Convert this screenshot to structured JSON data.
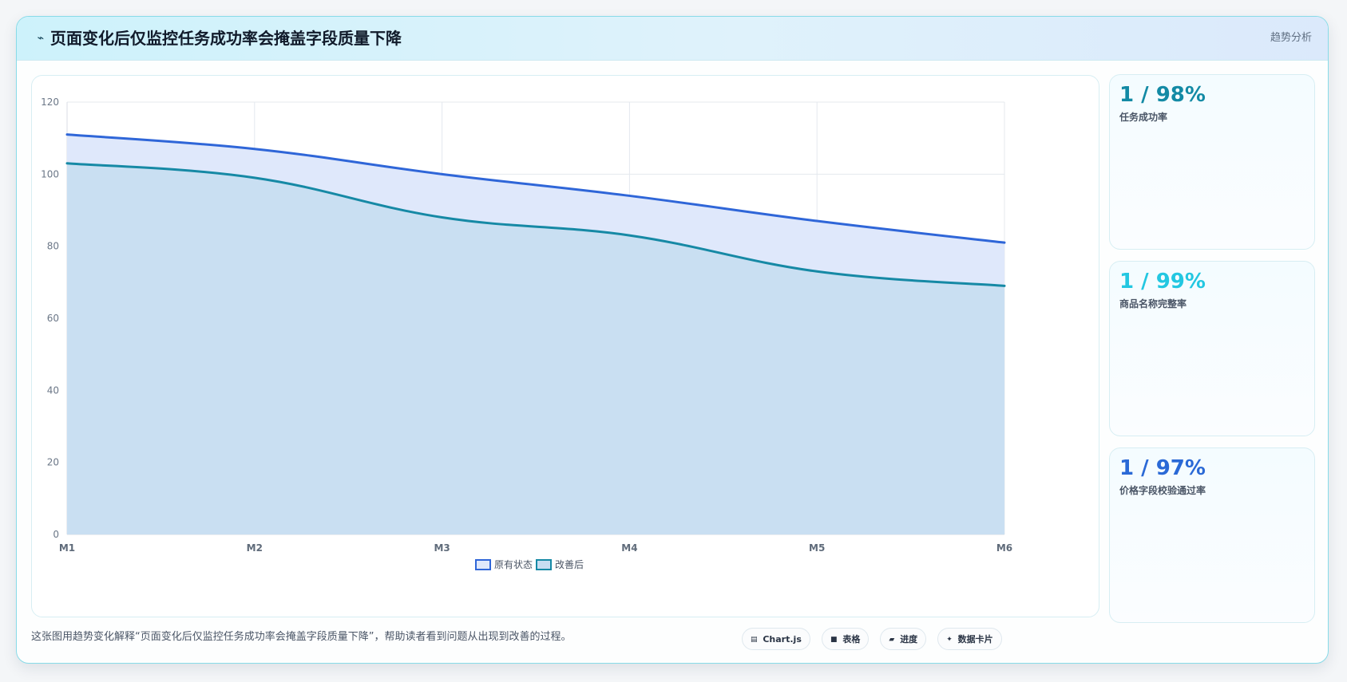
{
  "header": {
    "icon": "wave-icon",
    "title": "页面变化后仅监控任务成功率会掩盖字段质量下降",
    "tag": "趋势分析"
  },
  "chart_data": {
    "type": "area",
    "categories": [
      "M1",
      "M2",
      "M3",
      "M4",
      "M5",
      "M6"
    ],
    "series": [
      {
        "name": "原有状态",
        "values": [
          111,
          107,
          100,
          94,
          87,
          81
        ],
        "color": "#2f66d8",
        "fill": "#dfe8fb"
      },
      {
        "name": "改善后",
        "values": [
          103,
          99,
          88,
          83,
          73,
          69
        ],
        "color": "#1689a5",
        "fill": "#c7ddf1"
      }
    ],
    "ylim": [
      0,
      120
    ],
    "yticks": [
      0,
      20,
      40,
      60,
      80,
      100,
      120
    ],
    "xlabel": "",
    "ylabel": "",
    "grid": true,
    "legend": "bottom-center"
  },
  "kpis": [
    {
      "value": "1 / 98%",
      "label": "任务成功率",
      "color": "#138aa5"
    },
    {
      "value": "1 / 99%",
      "label": "商品名称完整率",
      "color": "#23c7e1"
    },
    {
      "value": "1 / 97%",
      "label": "价格字段校验通过率",
      "color": "#2a69d6"
    }
  ],
  "footer": {
    "note": "这张图用趋势变化解释“页面变化后仅监控任务成功率会掩盖字段质量下降”，帮助读者看到问题从出现到改善的过程。",
    "tags": [
      {
        "icon": "document-icon",
        "icon_glyph": "▤",
        "label": "Chart.js"
      },
      {
        "icon": "table-icon",
        "icon_glyph": "■",
        "label": "表格"
      },
      {
        "icon": "progress-icon",
        "icon_glyph": "▰",
        "label": "进度"
      },
      {
        "icon": "sparkle-icon",
        "icon_glyph": "✦",
        "label": "数据卡片"
      }
    ]
  }
}
